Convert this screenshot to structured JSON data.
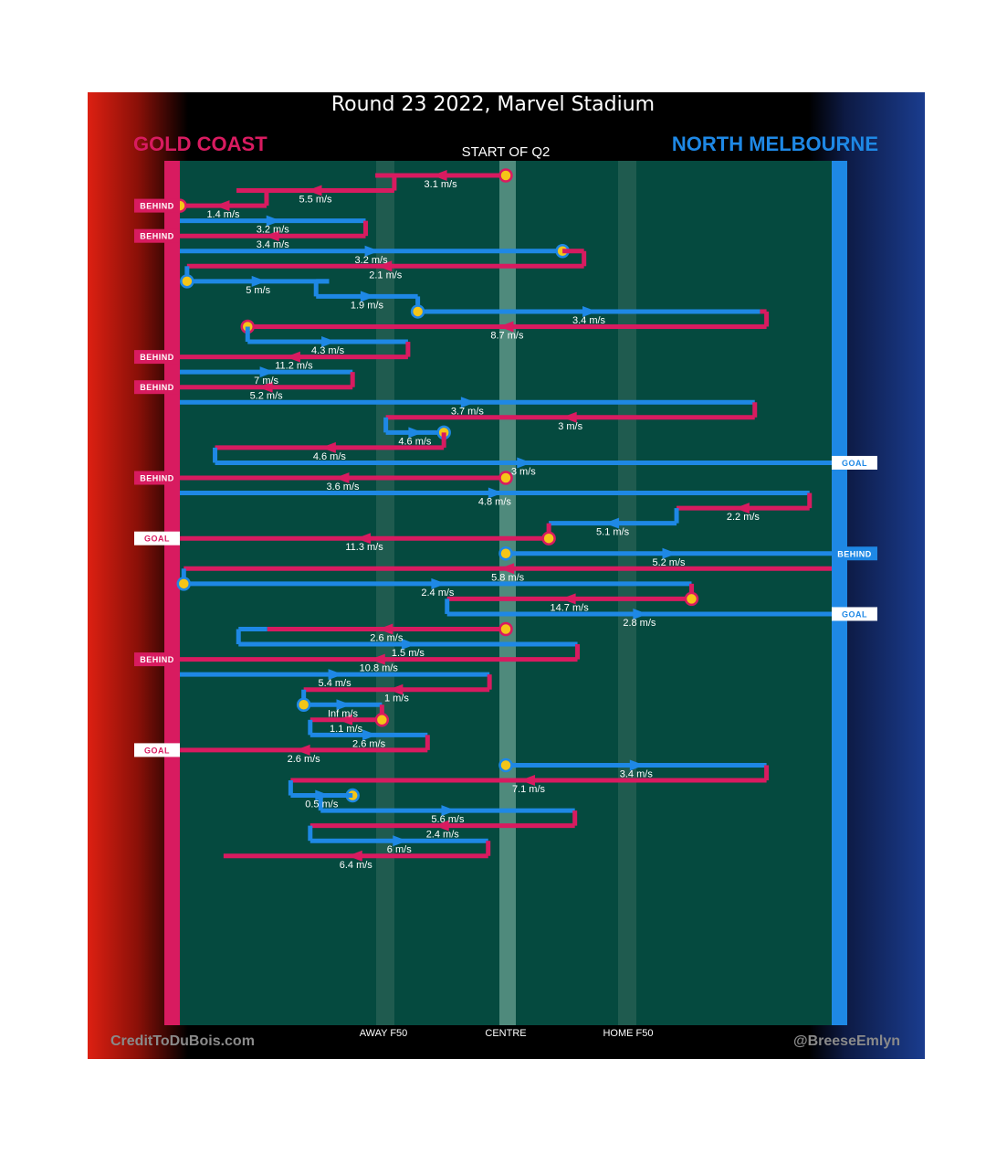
{
  "header": {
    "title": "Round 23 2022, Marvel Stadium",
    "subtitle": "START OF Q2",
    "team_left": "GOLD COAST",
    "team_right": "NORTH MELBOURNE"
  },
  "footer": {
    "credit_left": "CreditToDuBois.com",
    "credit_right": "@BreeseEmlyn",
    "zones": [
      "AWAY F50",
      "CENTRE",
      "HOME F50"
    ]
  },
  "colors": {
    "gold_coast": "#d81b60",
    "north_melbourne": "#1e88e5",
    "field": "#054a3f",
    "stoppage": "#f5c518"
  },
  "chart_data": {
    "type": "line",
    "description_axis": "x = field position (GC goal = 0, NM goal = 1), y = sequence step",
    "title": "Round 23 2022, Marvel Stadium",
    "subtitle": "START OF Q2",
    "xlabel": "",
    "ylabel": "",
    "x_ticks": [
      {
        "label": "AWAY F50",
        "x": 0.311
      },
      {
        "label": "CENTRE",
        "x": 0.5
      },
      {
        "label": "HOME F50",
        "x": 0.689
      }
    ],
    "sequences": [
      {
        "step": 1,
        "team": "gold_coast",
        "x_start": 0.5,
        "x_end": 0.3,
        "speed": "3.1 m/s",
        "start_stoppage": true
      },
      {
        "step": 2,
        "team": "gold_coast",
        "x_start": 0.329,
        "x_end": 0.087,
        "speed": "5.5 m/s"
      },
      {
        "step": 3,
        "team": "gold_coast",
        "x_start": 0.133,
        "x_end": 0.0,
        "speed": "1.4 m/s",
        "end_stoppage": true,
        "outcome": "BEHIND"
      },
      {
        "step": 4,
        "team": "north_melbourne",
        "x_start": 0.0,
        "x_end": 0.285,
        "speed": "3.2 m/s"
      },
      {
        "step": 5,
        "team": "gold_coast",
        "x_start": 0.285,
        "x_end": 0.0,
        "speed": "3.4 m/s",
        "outcome": "BEHIND"
      },
      {
        "step": 6,
        "team": "north_melbourne",
        "x_start": 0.0,
        "x_end": 0.587,
        "speed": "3.2 m/s",
        "end_stoppage": true
      },
      {
        "step": 7,
        "team": "gold_coast",
        "x_start": 0.62,
        "x_end": 0.011,
        "speed": "2.1 m/s"
      },
      {
        "step": 8,
        "team": "north_melbourne",
        "x_start": 0.011,
        "x_end": 0.229,
        "speed": "5 m/s",
        "start_stoppage": true
      },
      {
        "step": 9,
        "team": "north_melbourne",
        "x_start": 0.209,
        "x_end": 0.365,
        "speed": "1.9 m/s"
      },
      {
        "step": 10,
        "team": "north_melbourne",
        "x_start": 0.365,
        "x_end": 0.89,
        "speed": "3.4 m/s",
        "start_stoppage": true
      },
      {
        "step": 11,
        "team": "gold_coast",
        "x_start": 0.9,
        "x_end": 0.104,
        "speed": "8.7 m/s",
        "end_stoppage": true
      },
      {
        "step": 12,
        "team": "north_melbourne",
        "x_start": 0.104,
        "x_end": 0.35,
        "speed": "4.3 m/s"
      },
      {
        "step": 13,
        "team": "gold_coast",
        "x_start": 0.35,
        "x_end": 0.0,
        "speed": "11.2 m/s",
        "outcome": "BEHIND"
      },
      {
        "step": 14,
        "team": "north_melbourne",
        "x_start": 0.0,
        "x_end": 0.265,
        "speed": "7 m/s"
      },
      {
        "step": 15,
        "team": "gold_coast",
        "x_start": 0.265,
        "x_end": 0.0,
        "speed": "5.2 m/s",
        "outcome": "BEHIND"
      },
      {
        "step": 16,
        "team": "north_melbourne",
        "x_start": 0.0,
        "x_end": 0.882,
        "speed": "3.7 m/s"
      },
      {
        "step": 17,
        "team": "gold_coast",
        "x_start": 0.882,
        "x_end": 0.316,
        "speed": "3 m/s"
      },
      {
        "step": 18,
        "team": "north_melbourne",
        "x_start": 0.316,
        "x_end": 0.405,
        "speed": "4.6 m/s",
        "end_stoppage": true
      },
      {
        "step": 19,
        "team": "gold_coast",
        "x_start": 0.405,
        "x_end": 0.054,
        "speed": "4.6 m/s"
      },
      {
        "step": 20,
        "team": "north_melbourne",
        "x_start": 0.054,
        "x_end": 1.0,
        "speed": "3 m/s",
        "outcome": "GOAL"
      },
      {
        "step": 21,
        "team": "gold_coast",
        "x_start": 0.5,
        "x_end": 0.0,
        "speed": "3.6 m/s",
        "start_stoppage": true,
        "outcome": "BEHIND"
      },
      {
        "step": 22,
        "team": "north_melbourne",
        "x_start": 0.0,
        "x_end": 0.966,
        "speed": "4.8 m/s"
      },
      {
        "step": 23,
        "team": "gold_coast",
        "x_start": 0.966,
        "x_end": 0.762,
        "speed": "2.2 m/s"
      },
      {
        "step": 24,
        "team": "north_melbourne",
        "x_start": 0.762,
        "x_end": 0.566,
        "speed": "5.1 m/s"
      },
      {
        "step": 25,
        "team": "gold_coast",
        "x_start": 0.566,
        "x_end": 0.0,
        "speed": "11.3 m/s",
        "start_stoppage": true,
        "outcome": "GOAL"
      },
      {
        "step": 26,
        "team": "north_melbourne",
        "x_start": 0.5,
        "x_end": 1.0,
        "speed": "5.2 m/s",
        "start_stoppage": true,
        "outcome": "BEHIND"
      },
      {
        "step": 27,
        "team": "gold_coast",
        "x_start": 1.0,
        "x_end": 0.006,
        "speed": "5.8 m/s"
      },
      {
        "step": 28,
        "team": "north_melbourne",
        "x_start": 0.006,
        "x_end": 0.785,
        "speed": "2.4 m/s",
        "start_stoppage": true
      },
      {
        "step": 29,
        "team": "gold_coast",
        "x_start": 0.785,
        "x_end": 0.41,
        "speed": "14.7 m/s",
        "start_stoppage": true
      },
      {
        "step": 30,
        "team": "north_melbourne",
        "x_start": 0.41,
        "x_end": 1.0,
        "speed": "2.8 m/s",
        "outcome": "GOAL"
      },
      {
        "step": 31,
        "team": "gold_coast",
        "x_start": 0.5,
        "x_end": 0.134,
        "speed": "2.6 m/s",
        "start_stoppage": true
      },
      {
        "step": 32,
        "team": "north_melbourne",
        "x_start": 0.09,
        "x_end": 0.61,
        "speed": "1.5 m/s"
      },
      {
        "step": 33,
        "team": "gold_coast",
        "x_start": 0.61,
        "x_end": 0.0,
        "speed": "10.8 m/s",
        "outcome": "BEHIND"
      },
      {
        "step": 34,
        "team": "north_melbourne",
        "x_start": 0.0,
        "x_end": 0.475,
        "speed": "5.4 m/s"
      },
      {
        "step": 35,
        "team": "gold_coast",
        "x_start": 0.475,
        "x_end": 0.19,
        "speed": "1 m/s"
      },
      {
        "step": 36,
        "team": "north_melbourne",
        "x_start": 0.19,
        "x_end": 0.31,
        "speed": "Inf m/s",
        "start_stoppage": true
      },
      {
        "step": 37,
        "team": "gold_coast",
        "x_start": 0.31,
        "x_end": 0.2,
        "speed": "1.1 m/s",
        "start_stoppage": true
      },
      {
        "step": 38,
        "team": "north_melbourne",
        "x_start": 0.2,
        "x_end": 0.38,
        "speed": "2.6 m/s"
      },
      {
        "step": 39,
        "team": "gold_coast",
        "x_start": 0.38,
        "x_end": 0.0,
        "speed": "2.6 m/s",
        "outcome": "GOAL"
      },
      {
        "step": 40,
        "team": "north_melbourne",
        "x_start": 0.5,
        "x_end": 0.9,
        "speed": "3.4 m/s",
        "start_stoppage": true
      },
      {
        "step": 41,
        "team": "gold_coast",
        "x_start": 0.9,
        "x_end": 0.17,
        "speed": "7.1 m/s"
      },
      {
        "step": 42,
        "team": "north_melbourne",
        "x_start": 0.17,
        "x_end": 0.265,
        "speed": "0.5 m/s",
        "end_stoppage": true
      },
      {
        "step": 43,
        "team": "north_melbourne",
        "x_start": 0.216,
        "x_end": 0.606,
        "speed": "5.6 m/s"
      },
      {
        "step": 44,
        "team": "gold_coast",
        "x_start": 0.606,
        "x_end": 0.2,
        "speed": "2.4 m/s"
      },
      {
        "step": 45,
        "team": "north_melbourne",
        "x_start": 0.2,
        "x_end": 0.473,
        "speed": "6 m/s"
      },
      {
        "step": 46,
        "team": "gold_coast",
        "x_start": 0.473,
        "x_end": 0.067,
        "speed": "6.4 m/s"
      }
    ]
  }
}
